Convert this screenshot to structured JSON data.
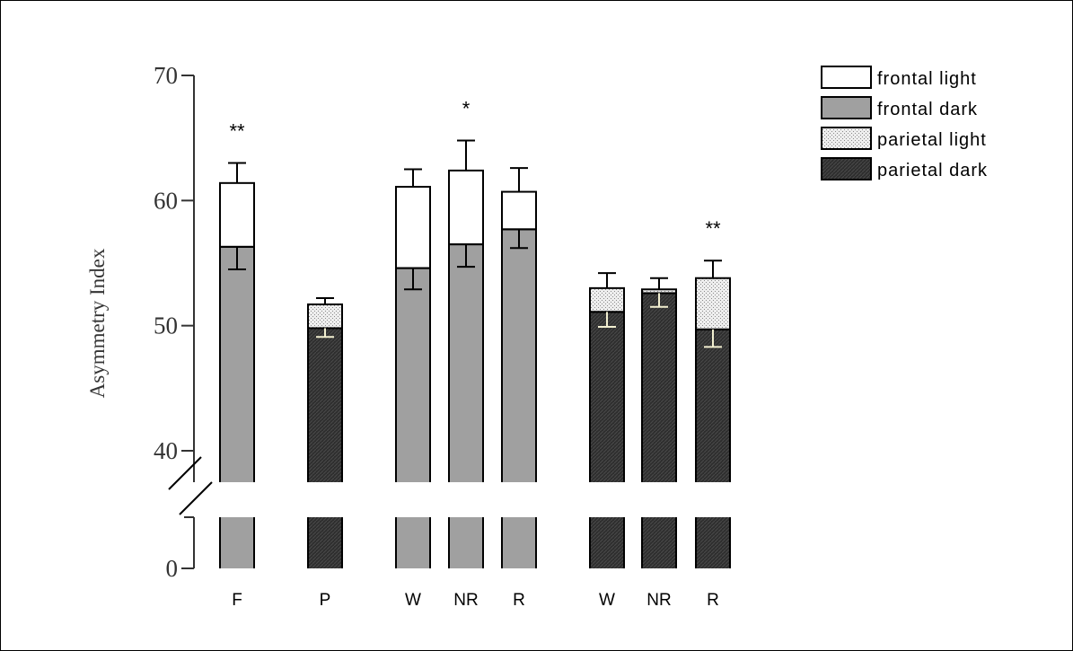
{
  "chart_data": {
    "type": "bar",
    "stacked": true,
    "ylabel": "Asymmetry Index",
    "xlabel": "",
    "title": "",
    "y_ticks": [
      0,
      40,
      50,
      60,
      70
    ],
    "ylim": [
      0,
      70
    ],
    "axis_break": "between 0 and 40",
    "grid": false,
    "legend_position": "top-right",
    "series": [
      {
        "key": "frontal_light",
        "name": "frontal light",
        "color": "#ffffff",
        "pattern": "none"
      },
      {
        "key": "frontal_dark",
        "name": "frontal dark",
        "color": "#a0a0a0",
        "pattern": "none"
      },
      {
        "key": "parietal_light",
        "name": "parietal light",
        "color": "#e2e2e2",
        "pattern": "dots"
      },
      {
        "key": "parietal_dark",
        "name": "parietal dark",
        "color": "#333333",
        "pattern": "hatch"
      }
    ],
    "bars": [
      {
        "category": "F",
        "lower_series": "frontal_dark",
        "lower_value": 56.3,
        "lower_error": 1.8,
        "upper_series": "frontal_light",
        "total_value": 61.4,
        "upper_error": 1.6,
        "significance": "**"
      },
      {
        "category": "P",
        "lower_series": "parietal_dark",
        "lower_value": 49.8,
        "lower_error": 0.7,
        "upper_series": "parietal_light",
        "total_value": 51.7,
        "upper_error": 0.5,
        "significance": ""
      },
      {
        "category": "W",
        "lower_series": "frontal_dark",
        "lower_value": 54.6,
        "lower_error": 1.7,
        "upper_series": "frontal_light",
        "total_value": 61.1,
        "upper_error": 1.4,
        "significance": ""
      },
      {
        "category": "NR",
        "lower_series": "frontal_dark",
        "lower_value": 56.5,
        "lower_error": 1.8,
        "upper_series": "frontal_light",
        "total_value": 62.4,
        "upper_error": 2.4,
        "significance": "*"
      },
      {
        "category": "R",
        "lower_series": "frontal_dark",
        "lower_value": 57.7,
        "lower_error": 1.5,
        "upper_series": "frontal_light",
        "total_value": 60.7,
        "upper_error": 1.9,
        "significance": ""
      },
      {
        "category": "W",
        "lower_series": "parietal_dark",
        "lower_value": 51.1,
        "lower_error": 1.2,
        "upper_series": "parietal_light",
        "total_value": 53.0,
        "upper_error": 1.2,
        "significance": ""
      },
      {
        "category": "NR",
        "lower_series": "parietal_dark",
        "lower_value": 52.6,
        "lower_error": 1.1,
        "upper_series": "parietal_light",
        "total_value": 52.9,
        "upper_error": 0.9,
        "significance": ""
      },
      {
        "category": "R",
        "lower_series": "parietal_dark",
        "lower_value": 49.7,
        "lower_error": 1.4,
        "upper_series": "parietal_light",
        "total_value": 53.8,
        "upper_error": 1.4,
        "significance": "**"
      }
    ]
  }
}
